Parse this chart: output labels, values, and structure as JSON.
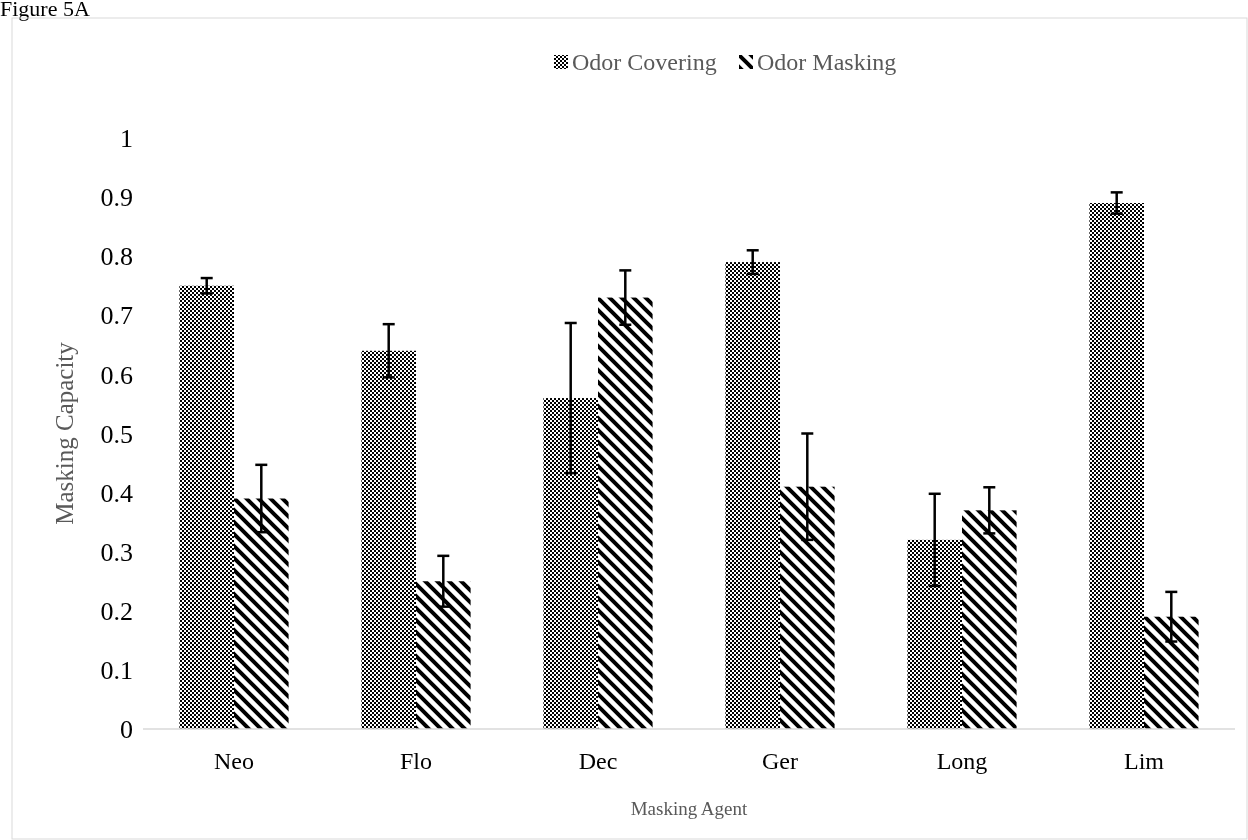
{
  "chart_data": {
    "type": "bar",
    "title": "Figure 5A",
    "xlabel": "Masking Agent",
    "ylabel": "Masking Capacity",
    "categories": [
      "Neo",
      "Flo",
      "Dec",
      "Ger",
      "Long",
      "Lim"
    ],
    "series": [
      {
        "name": "Odor Covering",
        "color": "#000000",
        "values": [
          0.75,
          0.64,
          0.56,
          0.79,
          0.32,
          0.89
        ],
        "errors": [
          0.013,
          0.045,
          0.127,
          0.02,
          0.078,
          0.018
        ]
      },
      {
        "name": "Odor Masking",
        "color": "#000000",
        "values": [
          0.39,
          0.25,
          0.73,
          0.41,
          0.37,
          0.19
        ],
        "errors": [
          0.057,
          0.043,
          0.046,
          0.09,
          0.039,
          0.042
        ]
      }
    ],
    "ylim": [
      0,
      1
    ],
    "yticks": [
      0,
      0.1,
      0.2,
      0.3,
      0.4,
      0.5,
      0.6,
      0.7,
      0.8,
      0.9,
      1
    ],
    "grid": false,
    "legend": "top"
  }
}
